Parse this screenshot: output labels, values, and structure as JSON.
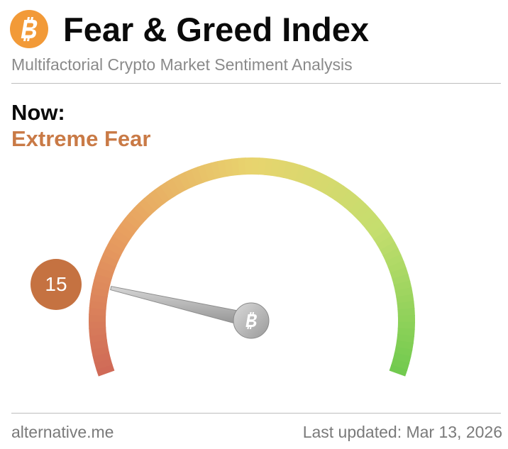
{
  "header": {
    "title": "Fear & Greed Index",
    "subtitle": "Multifactorial Crypto Market Sentiment Analysis",
    "logo_icon": "bitcoin-icon",
    "logo_color": "#f29a38"
  },
  "now": {
    "label": "Now:",
    "status": "Extreme Fear",
    "status_color": "#c97a46"
  },
  "gauge": {
    "value": "15",
    "min": 0,
    "max": 100,
    "badge_color": "#c57241",
    "hub_icon": "bitcoin-icon"
  },
  "footer": {
    "source": "alternative.me",
    "last_updated": "Last updated: Mar 13, 2026"
  }
}
